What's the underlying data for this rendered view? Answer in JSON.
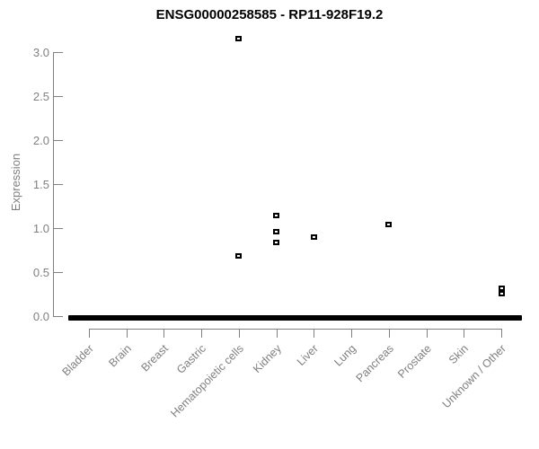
{
  "colors": {
    "background": "#ffffff",
    "title_text": "#000000",
    "axis_line": "#808080",
    "axis_text": "#7f7f7f",
    "marker": "#000000"
  },
  "chart_data": {
    "type": "scatter",
    "variant": "strip-plot-expression",
    "title": "ENSG00000258585 - RP11-928F19.2",
    "xlabel": "",
    "ylabel": "Expression",
    "ylim": [
      0.0,
      3.0
    ],
    "yticks": [
      "0.0",
      "0.5",
      "1.0",
      "1.5",
      "2.0",
      "2.5",
      "3.0"
    ],
    "grid": false,
    "legend": false,
    "marker_shape": "small-open-square",
    "zero_cluster_note": "each category has a dense overlapping cluster of points at expression 0, drawn as a thick black dash",
    "categories": [
      "Bladder",
      "Brain",
      "Breast",
      "Gastric",
      "Hematopoietic cells",
      "Kidney",
      "Liver",
      "Lung",
      "Pancreas",
      "Prostate",
      "Skin",
      "Unknown / Other"
    ],
    "series": [
      {
        "category": "Bladder",
        "zero_cluster": true,
        "values_above_zero": []
      },
      {
        "category": "Brain",
        "zero_cluster": true,
        "values_above_zero": []
      },
      {
        "category": "Breast",
        "zero_cluster": true,
        "values_above_zero": []
      },
      {
        "category": "Gastric",
        "zero_cluster": true,
        "values_above_zero": []
      },
      {
        "category": "Hematopoietic cells",
        "zero_cluster": true,
        "values_above_zero": [
          3.15,
          0.68
        ]
      },
      {
        "category": "Kidney",
        "zero_cluster": true,
        "values_above_zero": [
          1.14,
          0.96,
          0.84
        ]
      },
      {
        "category": "Liver",
        "zero_cluster": true,
        "values_above_zero": [
          0.9
        ]
      },
      {
        "category": "Lung",
        "zero_cluster": true,
        "values_above_zero": []
      },
      {
        "category": "Pancreas",
        "zero_cluster": true,
        "values_above_zero": [
          1.04
        ]
      },
      {
        "category": "Prostate",
        "zero_cluster": true,
        "values_above_zero": []
      },
      {
        "category": "Skin",
        "zero_cluster": true,
        "values_above_zero": []
      },
      {
        "category": "Unknown / Other",
        "zero_cluster": true,
        "values_above_zero": [
          0.32,
          0.26
        ]
      }
    ]
  }
}
